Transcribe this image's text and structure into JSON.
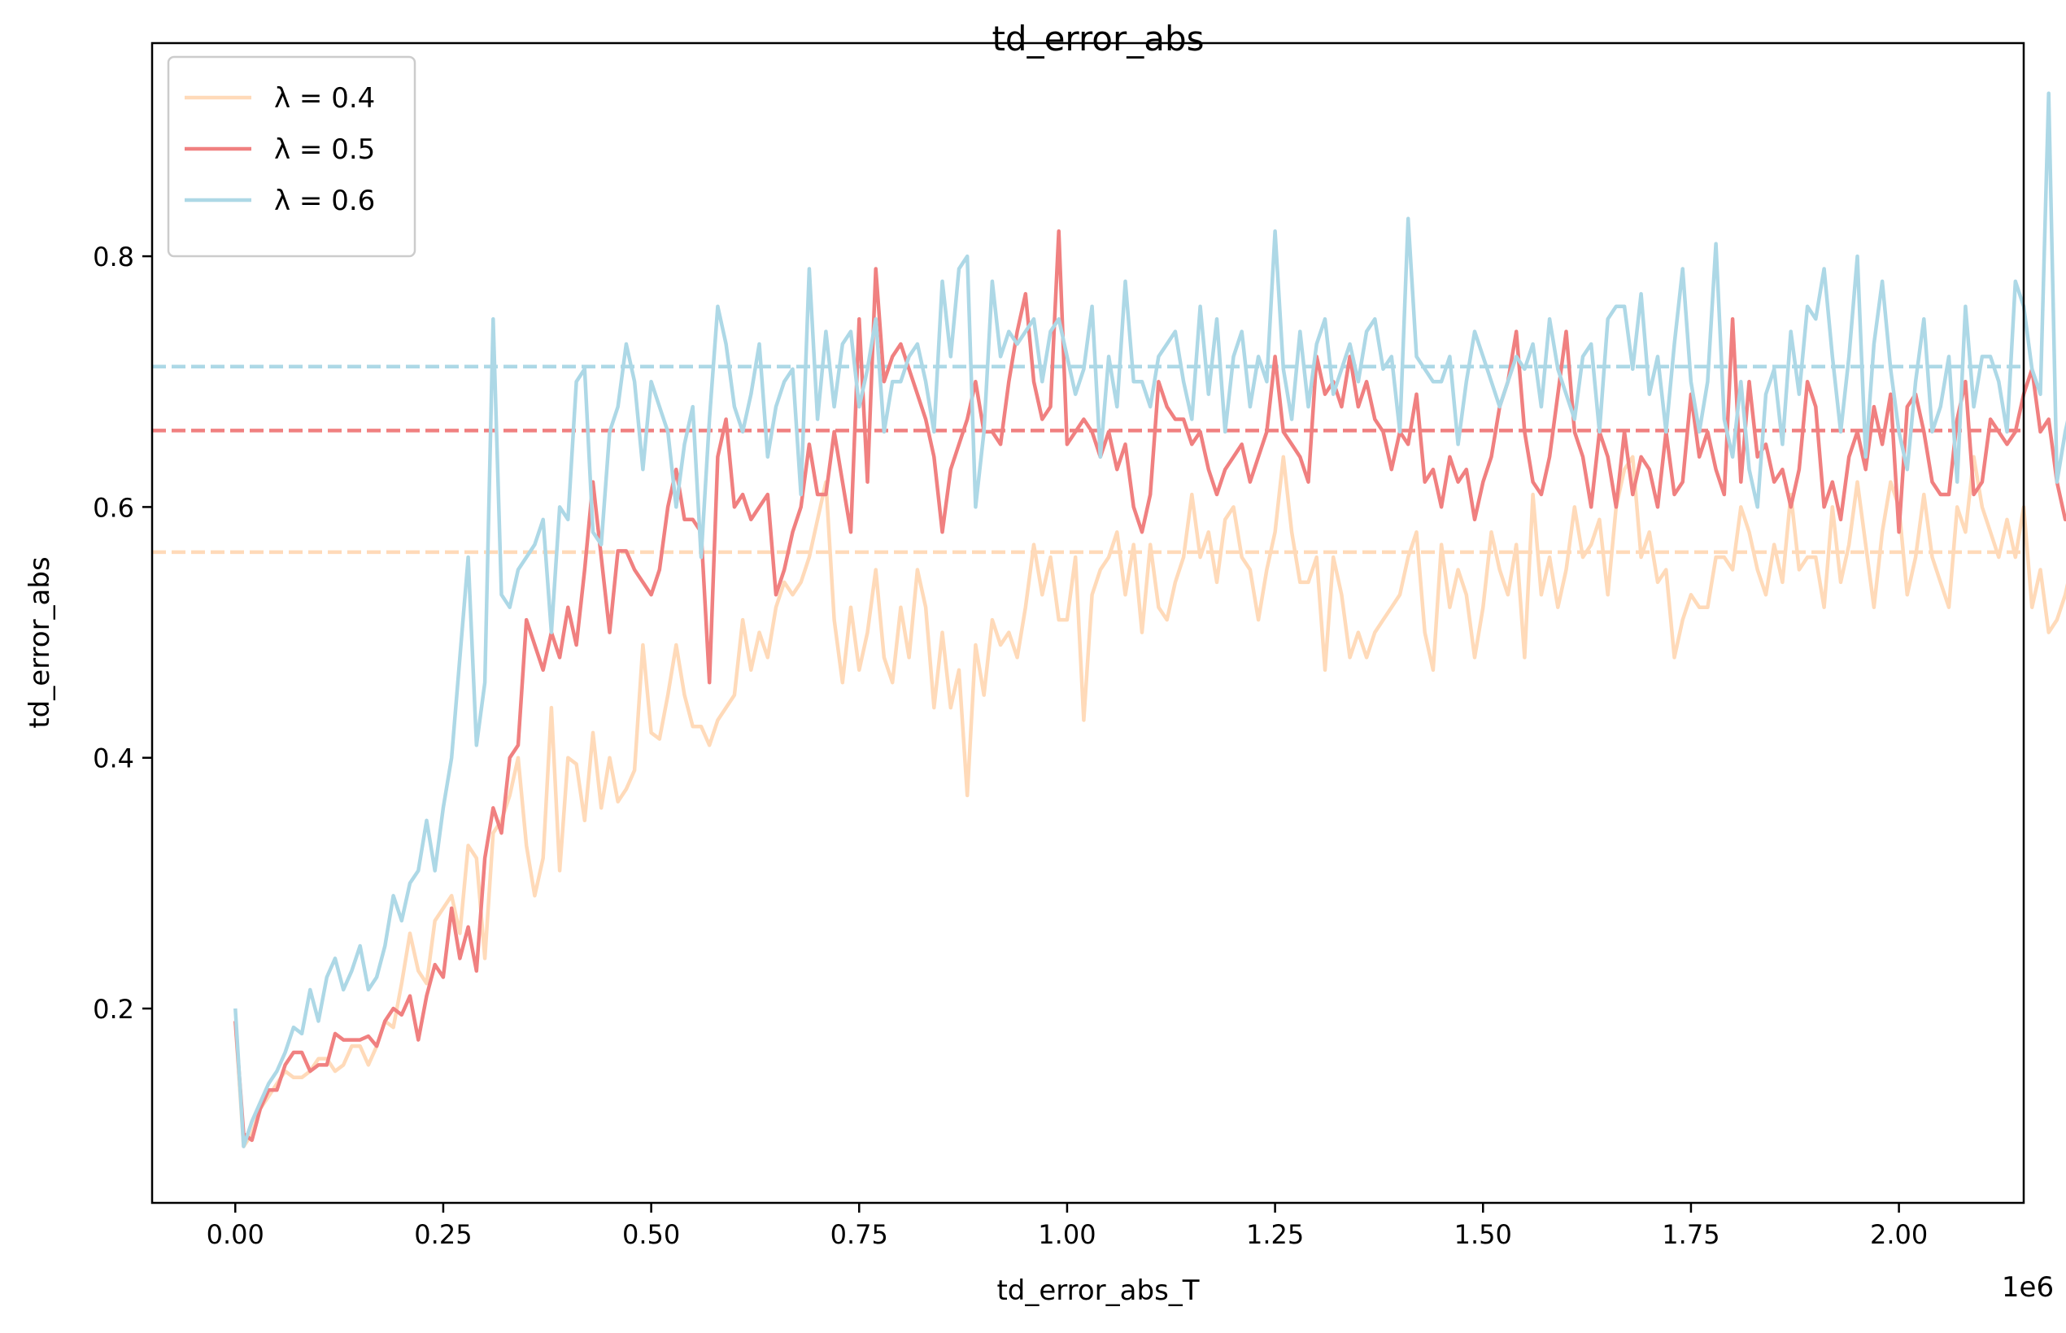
{
  "chart_data": {
    "type": "line",
    "title": "td_error_abs",
    "xlabel": "td_error_abs_T",
    "ylabel": "td_error_abs",
    "x_offset_label": "1e6",
    "xlim": [
      -100000,
      2150000
    ],
    "ylim": [
      0.045,
      0.97
    ],
    "xticks": [
      0,
      250000,
      500000,
      750000,
      1000000,
      1250000,
      1500000,
      1750000,
      2000000
    ],
    "xtick_labels": [
      "0.00",
      "0.25",
      "0.50",
      "0.75",
      "1.00",
      "1.25",
      "1.50",
      "1.75",
      "2.00"
    ],
    "yticks": [
      0.2,
      0.4,
      0.6,
      0.8
    ],
    "ytick_labels": [
      "0.2",
      "0.4",
      "0.6",
      "0.8"
    ],
    "grid": false,
    "legend_position": "top-left",
    "x_start": 0,
    "x_step": 10000,
    "series": [
      {
        "name": "λ = 0.4",
        "color": "#ffdab9",
        "mean": 0.564,
        "values": [
          0.19,
          0.09,
          0.1,
          0.12,
          0.13,
          0.14,
          0.15,
          0.145,
          0.145,
          0.15,
          0.16,
          0.16,
          0.15,
          0.155,
          0.17,
          0.17,
          0.155,
          0.17,
          0.19,
          0.185,
          0.22,
          0.26,
          0.23,
          0.22,
          0.27,
          0.28,
          0.29,
          0.26,
          0.33,
          0.32,
          0.24,
          0.34,
          0.35,
          0.37,
          0.4,
          0.33,
          0.29,
          0.32,
          0.44,
          0.31,
          0.4,
          0.395,
          0.35,
          0.42,
          0.36,
          0.4,
          0.365,
          0.375,
          0.39,
          0.49,
          0.42,
          0.415,
          0.45,
          0.49,
          0.45,
          0.425,
          0.425,
          0.41,
          0.43,
          0.44,
          0.45,
          0.51,
          0.47,
          0.5,
          0.48,
          0.52,
          0.54,
          0.53,
          0.54,
          0.56,
          0.59,
          0.62,
          0.51,
          0.46,
          0.52,
          0.47,
          0.5,
          0.55,
          0.48,
          0.46,
          0.52,
          0.48,
          0.55,
          0.52,
          0.44,
          0.5,
          0.44,
          0.47,
          0.37,
          0.49,
          0.45,
          0.51,
          0.49,
          0.5,
          0.48,
          0.52,
          0.57,
          0.53,
          0.56,
          0.51,
          0.51,
          0.56,
          0.43,
          0.53,
          0.55,
          0.56,
          0.58,
          0.53,
          0.57,
          0.5,
          0.57,
          0.52,
          0.51,
          0.54,
          0.56,
          0.61,
          0.56,
          0.58,
          0.54,
          0.59,
          0.6,
          0.56,
          0.55,
          0.51,
          0.55,
          0.58,
          0.64,
          0.58,
          0.54,
          0.54,
          0.56,
          0.47,
          0.56,
          0.53,
          0.48,
          0.5,
          0.48,
          0.5,
          0.51,
          0.52,
          0.53,
          0.56,
          0.58,
          0.5,
          0.47,
          0.57,
          0.52,
          0.55,
          0.53,
          0.48,
          0.52,
          0.58,
          0.55,
          0.53,
          0.57,
          0.48,
          0.61,
          0.53,
          0.56,
          0.52,
          0.55,
          0.6,
          0.56,
          0.57,
          0.59,
          0.53,
          0.6,
          0.63,
          0.64,
          0.56,
          0.58,
          0.54,
          0.55,
          0.48,
          0.51,
          0.53,
          0.52,
          0.52,
          0.56,
          0.56,
          0.55,
          0.6,
          0.58,
          0.55,
          0.53,
          0.57,
          0.54,
          0.61,
          0.55,
          0.56,
          0.56,
          0.52,
          0.6,
          0.54,
          0.57,
          0.62,
          0.57,
          0.52,
          0.58,
          0.62,
          0.6,
          0.53,
          0.56,
          0.61,
          0.56,
          0.54,
          0.52,
          0.6,
          0.58,
          0.64,
          0.6,
          0.58,
          0.56,
          0.59,
          0.56,
          0.6,
          0.52,
          0.55,
          0.5,
          0.51,
          0.53,
          0.56,
          0.55,
          0.53,
          0.58,
          0.59,
          0.58,
          0.48,
          0.55,
          0.56,
          0.55,
          0.55,
          0.53,
          0.63,
          0.61
        ]
      },
      {
        "name": "λ = 0.5",
        "color": "#f08080",
        "mean": 0.661,
        "values": [
          0.19,
          0.1,
          0.095,
          0.12,
          0.135,
          0.135,
          0.155,
          0.165,
          0.165,
          0.15,
          0.155,
          0.155,
          0.18,
          0.175,
          0.175,
          0.175,
          0.178,
          0.17,
          0.19,
          0.2,
          0.195,
          0.21,
          0.175,
          0.21,
          0.235,
          0.225,
          0.28,
          0.24,
          0.265,
          0.23,
          0.32,
          0.36,
          0.34,
          0.4,
          0.41,
          0.51,
          0.49,
          0.47,
          0.5,
          0.48,
          0.52,
          0.49,
          0.55,
          0.62,
          0.56,
          0.5,
          0.565,
          0.565,
          0.55,
          0.54,
          0.53,
          0.55,
          0.6,
          0.63,
          0.59,
          0.59,
          0.58,
          0.46,
          0.64,
          0.67,
          0.6,
          0.61,
          0.59,
          0.6,
          0.61,
          0.53,
          0.55,
          0.58,
          0.6,
          0.65,
          0.61,
          0.61,
          0.66,
          0.62,
          0.58,
          0.75,
          0.62,
          0.79,
          0.7,
          0.72,
          0.73,
          0.71,
          0.69,
          0.67,
          0.64,
          0.58,
          0.63,
          0.65,
          0.67,
          0.7,
          0.66,
          0.66,
          0.65,
          0.7,
          0.74,
          0.77,
          0.7,
          0.67,
          0.68,
          0.82,
          0.65,
          0.66,
          0.67,
          0.66,
          0.64,
          0.66,
          0.63,
          0.65,
          0.6,
          0.58,
          0.61,
          0.7,
          0.68,
          0.67,
          0.67,
          0.65,
          0.66,
          0.63,
          0.61,
          0.63,
          0.64,
          0.65,
          0.62,
          0.64,
          0.66,
          0.72,
          0.66,
          0.65,
          0.64,
          0.62,
          0.72,
          0.69,
          0.7,
          0.68,
          0.72,
          0.68,
          0.7,
          0.67,
          0.66,
          0.63,
          0.66,
          0.65,
          0.69,
          0.62,
          0.63,
          0.6,
          0.64,
          0.62,
          0.63,
          0.59,
          0.62,
          0.64,
          0.68,
          0.7,
          0.74,
          0.66,
          0.62,
          0.61,
          0.64,
          0.69,
          0.74,
          0.66,
          0.64,
          0.6,
          0.66,
          0.64,
          0.6,
          0.66,
          0.61,
          0.64,
          0.63,
          0.6,
          0.66,
          0.61,
          0.62,
          0.69,
          0.64,
          0.66,
          0.63,
          0.61,
          0.75,
          0.62,
          0.7,
          0.64,
          0.65,
          0.62,
          0.63,
          0.6,
          0.63,
          0.7,
          0.68,
          0.6,
          0.62,
          0.59,
          0.64,
          0.66,
          0.63,
          0.68,
          0.65,
          0.69,
          0.58,
          0.68,
          0.69,
          0.66,
          0.62,
          0.61,
          0.61,
          0.67,
          0.7,
          0.61,
          0.62,
          0.67,
          0.66,
          0.65,
          0.66,
          0.69,
          0.71,
          0.66,
          0.67,
          0.62,
          0.59,
          0.6,
          0.65,
          0.65,
          0.62,
          0.565
        ]
      },
      {
        "name": "λ = 0.6",
        "color": "#add8e6",
        "mean": 0.712,
        "values": [
          0.2,
          0.09,
          0.11,
          0.125,
          0.14,
          0.15,
          0.165,
          0.185,
          0.18,
          0.215,
          0.19,
          0.225,
          0.24,
          0.215,
          0.23,
          0.25,
          0.215,
          0.225,
          0.25,
          0.29,
          0.27,
          0.3,
          0.31,
          0.35,
          0.31,
          0.36,
          0.4,
          0.48,
          0.56,
          0.41,
          0.46,
          0.75,
          0.53,
          0.52,
          0.55,
          0.56,
          0.57,
          0.59,
          0.5,
          0.6,
          0.59,
          0.7,
          0.71,
          0.58,
          0.57,
          0.66,
          0.68,
          0.73,
          0.7,
          0.63,
          0.7,
          0.68,
          0.66,
          0.6,
          0.65,
          0.68,
          0.56,
          0.67,
          0.76,
          0.73,
          0.68,
          0.66,
          0.69,
          0.73,
          0.64,
          0.68,
          0.7,
          0.71,
          0.61,
          0.79,
          0.67,
          0.74,
          0.68,
          0.73,
          0.74,
          0.68,
          0.71,
          0.75,
          0.66,
          0.7,
          0.7,
          0.72,
          0.73,
          0.7,
          0.66,
          0.78,
          0.72,
          0.79,
          0.8,
          0.6,
          0.66,
          0.78,
          0.72,
          0.74,
          0.73,
          0.74,
          0.75,
          0.7,
          0.74,
          0.75,
          0.72,
          0.69,
          0.71,
          0.76,
          0.64,
          0.72,
          0.68,
          0.78,
          0.7,
          0.7,
          0.68,
          0.72,
          0.73,
          0.74,
          0.7,
          0.67,
          0.76,
          0.69,
          0.75,
          0.66,
          0.72,
          0.74,
          0.68,
          0.72,
          0.7,
          0.82,
          0.71,
          0.67,
          0.74,
          0.68,
          0.73,
          0.75,
          0.69,
          0.71,
          0.73,
          0.7,
          0.74,
          0.75,
          0.71,
          0.72,
          0.66,
          0.83,
          0.72,
          0.71,
          0.7,
          0.7,
          0.72,
          0.65,
          0.7,
          0.74,
          0.72,
          0.7,
          0.68,
          0.7,
          0.72,
          0.71,
          0.73,
          0.68,
          0.75,
          0.71,
          0.69,
          0.67,
          0.72,
          0.73,
          0.66,
          0.75,
          0.76,
          0.76,
          0.71,
          0.77,
          0.69,
          0.72,
          0.66,
          0.73,
          0.79,
          0.7,
          0.66,
          0.7,
          0.81,
          0.67,
          0.64,
          0.7,
          0.63,
          0.6,
          0.69,
          0.71,
          0.65,
          0.74,
          0.69,
          0.76,
          0.75,
          0.79,
          0.72,
          0.66,
          0.72,
          0.8,
          0.64,
          0.73,
          0.78,
          0.71,
          0.66,
          0.63,
          0.7,
          0.75,
          0.66,
          0.68,
          0.72,
          0.62,
          0.76,
          0.68,
          0.72,
          0.72,
          0.7,
          0.66,
          0.78,
          0.76,
          0.71,
          0.69,
          0.93,
          0.62,
          0.66,
          0.69,
          0.66,
          0.7,
          0.73,
          0.66,
          0.75,
          0.7,
          0.66,
          0.72,
          0.68,
          0.69,
          0.67
        ]
      }
    ]
  }
}
